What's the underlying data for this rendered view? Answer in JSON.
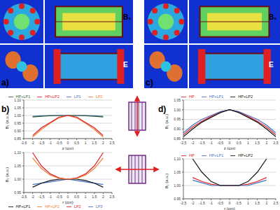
{
  "figure_labels": {
    "a": "a)",
    "b": "b)",
    "c": "c)",
    "d": "d)"
  },
  "map_labels": {
    "b1": "B₁",
    "e": "E"
  },
  "chart_data": [
    {
      "type": "line",
      "panel": "b",
      "x_label": "z (cm)",
      "y_label": "B₁ (a.u.)",
      "grid": true,
      "legend": "top",
      "x": [
        -2,
        -1.5,
        -1,
        -0.5,
        0,
        0.5,
        1,
        1.5,
        2
      ],
      "xlim": [
        -2.5,
        2.5
      ],
      "xticks": [
        {
          "value": -2.5,
          "label": "-2,5"
        },
        -2,
        {
          "value": -1.5,
          "label": "-1,5"
        },
        -1,
        {
          "value": -0.5,
          "label": "-0,5"
        },
        0,
        {
          "value": 0.5,
          "label": "0,5"
        },
        1,
        {
          "value": 1.5,
          "label": "1,5"
        },
        2,
        {
          "value": 2.5,
          "label": "2,5"
        }
      ],
      "ylim": [
        0.85,
        1.1
      ],
      "yticks": [
        {
          "value": 0.85,
          "label": "0,85"
        },
        {
          "value": 0.9,
          "label": "0,90"
        },
        {
          "value": 0.95,
          "label": "0,95"
        },
        {
          "value": 1.0,
          "label": "1,00"
        },
        {
          "value": 1.05,
          "label": "1,05"
        },
        {
          "value": 1.1,
          "label": "1,10"
        }
      ],
      "series": [
        {
          "name": "LP1",
          "color": "#4472c4",
          "values": [
            0.995,
            0.998,
            1.0,
            1.0,
            1.0,
            1.0,
            1.0,
            0.998,
            0.995
          ]
        },
        {
          "name": "HP+LP1",
          "color": "#2f5f2f",
          "values": [
            0.99,
            0.995,
            0.998,
            1.0,
            1.0,
            1.0,
            0.998,
            0.995,
            0.99
          ]
        },
        {
          "name": "LP2",
          "color": "#ed7d31",
          "values": [
            0.86,
            0.91,
            0.95,
            0.985,
            1.0,
            0.985,
            0.95,
            0.91,
            0.86
          ]
        },
        {
          "name": "HP+LP2",
          "color": "#e0202a",
          "values": [
            0.87,
            0.92,
            0.955,
            0.99,
            1.0,
            0.99,
            0.955,
            0.92,
            0.87
          ]
        }
      ]
    },
    {
      "type": "line",
      "panel": "b",
      "x_label": "r (cm)",
      "y_label": "B₁ (a.u.)",
      "grid": true,
      "legend": "bottom",
      "x": [
        -2,
        -1.5,
        -1,
        -0.5,
        0,
        0.5,
        1,
        1.5,
        2
      ],
      "xlim": [
        -2.5,
        2.5
      ],
      "xticks": [
        {
          "value": -2.5,
          "label": "-2,5"
        },
        -2,
        {
          "value": -1.5,
          "label": "-1,5"
        },
        -1,
        {
          "value": -0.5,
          "label": "-0,5"
        },
        0,
        {
          "value": 0.5,
          "label": "0,5"
        },
        1,
        {
          "value": 1.5,
          "label": "1,5"
        },
        2,
        {
          "value": 2.5,
          "label": "2,5"
        }
      ],
      "ylim": [
        0.95,
        1.1
      ],
      "yticks": [
        {
          "value": 0.95,
          "label": "0,95"
        },
        {
          "value": 1.0,
          "label": "1,00"
        },
        {
          "value": 1.05,
          "label": "1,05"
        },
        {
          "value": 1.1,
          "label": "1,10"
        }
      ],
      "series": [
        {
          "name": "LP3",
          "color": "#4472c4",
          "values": [
            0.98,
            0.985,
            0.99,
            0.995,
            1.0,
            0.995,
            0.99,
            0.985,
            0.98
          ]
        },
        {
          "name": "HP+LP1",
          "color": "#111111",
          "values": [
            0.97,
            0.985,
            0.995,
            1.0,
            1.0,
            1.0,
            0.995,
            0.985,
            0.97
          ]
        },
        {
          "name": "LP2",
          "color": "#e0202a",
          "values": [
            1.1,
            1.05,
            1.02,
            1.005,
            1.0,
            1.005,
            1.02,
            1.05,
            1.1
          ]
        },
        {
          "name": "HP+LP2",
          "color": "#ed7d31",
          "values": [
            1.08,
            1.04,
            1.015,
            1.003,
            1.0,
            1.003,
            1.015,
            1.04,
            1.08
          ]
        }
      ]
    },
    {
      "type": "line",
      "panel": "d",
      "x_label": "z (cm)",
      "y_label": "B₁ (a.u.)",
      "grid": true,
      "legend": "top",
      "x": [
        -2.5,
        -2,
        -1.5,
        -1,
        -0.5,
        0,
        0.5,
        1,
        1.5,
        2,
        2.5
      ],
      "xlim": [
        -2.5,
        2.5
      ],
      "xticks": [
        {
          "value": -2.5,
          "label": "-2,5"
        },
        -2,
        {
          "value": -1.5,
          "label": "-1,5"
        },
        -1,
        {
          "value": -0.5,
          "label": "-0,5"
        },
        0,
        {
          "value": 0.5,
          "label": "0,5"
        },
        1,
        {
          "value": 1.5,
          "label": "1,5"
        },
        2,
        {
          "value": 2.5,
          "label": "2,5"
        }
      ],
      "ylim": [
        0.85,
        1.05
      ],
      "yticks": [
        {
          "value": 0.85,
          "label": "0,85"
        },
        {
          "value": 0.9,
          "label": "0,90"
        },
        {
          "value": 0.95,
          "label": "0,95"
        },
        {
          "value": 1.0,
          "label": "1,00"
        },
        {
          "value": 1.05,
          "label": "1,05"
        }
      ],
      "series": [
        {
          "name": "HP",
          "color": "#e0202a",
          "values": [
            0.87,
            0.91,
            0.94,
            0.965,
            0.99,
            1.0,
            0.99,
            0.965,
            0.94,
            0.91,
            0.87
          ]
        },
        {
          "name": "HP+LP1",
          "color": "#4472c4",
          "values": [
            0.88,
            0.92,
            0.95,
            0.97,
            0.99,
            1.0,
            0.99,
            0.97,
            0.95,
            0.92,
            0.88
          ]
        },
        {
          "name": "HP+LP2",
          "color": "#111111",
          "values": [
            0.86,
            0.9,
            0.935,
            0.96,
            0.985,
            1.0,
            0.985,
            0.96,
            0.935,
            0.9,
            0.86
          ]
        }
      ]
    },
    {
      "type": "line",
      "panel": "d",
      "x_label": "r (cm)",
      "y_label": "B₁ (a.u.)",
      "grid": true,
      "legend": "top",
      "x": [
        -2,
        -1.5,
        -1,
        -0.5,
        0,
        0.5,
        1,
        1.5,
        2
      ],
      "xlim": [
        -2.5,
        2.5
      ],
      "xticks": [
        {
          "value": -2.5,
          "label": "-2,5"
        },
        -2,
        {
          "value": -1.5,
          "label": "-1,5"
        },
        -1,
        {
          "value": -0.5,
          "label": "-0,5"
        },
        0,
        {
          "value": 0.5,
          "label": "0,5"
        },
        1,
        {
          "value": 1.5,
          "label": "1,5"
        },
        2,
        {
          "value": 2.5,
          "label": "2,5"
        }
      ],
      "ylim": [
        0.95,
        1.1
      ],
      "yticks": [
        {
          "value": 0.95,
          "label": "0,95"
        },
        {
          "value": 1.0,
          "label": "1,00"
        },
        {
          "value": 1.05,
          "label": "1,05"
        },
        {
          "value": 1.1,
          "label": "1,10"
        }
      ],
      "series": [
        {
          "name": "HP",
          "color": "#e0202a",
          "values": [
            1.03,
            1.015,
            1.005,
            1.0,
            1.0,
            1.0,
            1.005,
            1.015,
            1.03
          ]
        },
        {
          "name": "HP+LP1",
          "color": "#4472c4",
          "values": [
            1.02,
            1.01,
            1.0,
            1.0,
            1.0,
            1.0,
            1.0,
            1.01,
            1.02
          ]
        },
        {
          "name": "HP+LP2",
          "color": "#111111",
          "values": [
            1.1,
            1.05,
            1.015,
            1.0,
            1.0,
            1.0,
            1.015,
            1.05,
            1.1
          ]
        }
      ]
    }
  ]
}
